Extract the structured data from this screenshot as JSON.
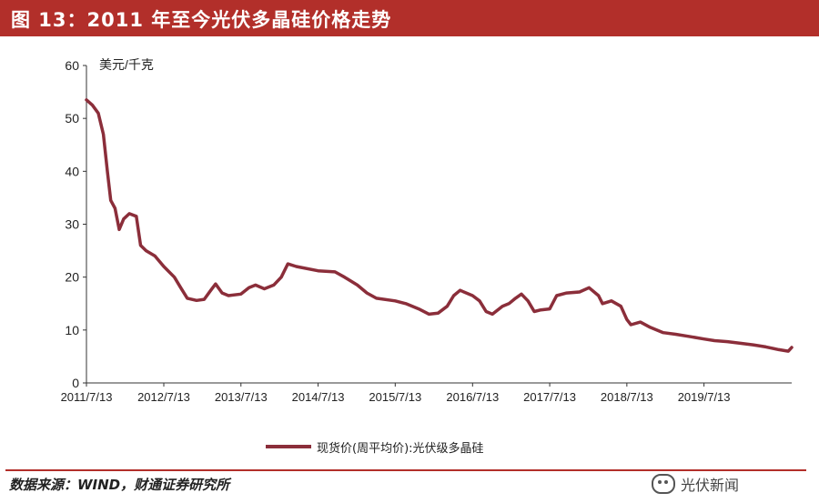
{
  "header": {
    "title": "图 13：2011 年至今光伏多晶硅价格走势"
  },
  "footer": {
    "source": "数据来源：WIND，财通证券研究所",
    "watermark": "光伏新闻"
  },
  "chart_data": {
    "type": "line",
    "title": "",
    "ylabel": "美元/千克",
    "xlabel": "",
    "ylim": [
      0,
      60
    ],
    "yticks": [
      0,
      10,
      20,
      30,
      40,
      50,
      60
    ],
    "xlim": [
      "2011-07-13",
      "2020-08-31"
    ],
    "xticks": [
      "2011/7/13",
      "2012/7/13",
      "2013/7/13",
      "2014/7/13",
      "2015/7/13",
      "2016/7/13",
      "2017/7/13",
      "2018/7/13",
      "2019/7/13"
    ],
    "grid": false,
    "legend_position": "bottom",
    "series": [
      {
        "name": "现货价(周平均价):光伏级多晶硅",
        "color": "#8b2e3a",
        "points": [
          [
            "2011-07-13",
            53.5
          ],
          [
            "2011-08-10",
            52.5
          ],
          [
            "2011-09-07",
            51.0
          ],
          [
            "2011-10-01",
            47.0
          ],
          [
            "2011-10-20",
            40.0
          ],
          [
            "2011-11-05",
            34.5
          ],
          [
            "2011-11-25",
            33.0
          ],
          [
            "2011-12-15",
            29.0
          ],
          [
            "2012-01-05",
            31.0
          ],
          [
            "2012-02-01",
            32.0
          ],
          [
            "2012-03-05",
            31.5
          ],
          [
            "2012-03-25",
            26.0
          ],
          [
            "2012-04-20",
            25.0
          ],
          [
            "2012-06-01",
            24.0
          ],
          [
            "2012-07-13",
            22.0
          ],
          [
            "2012-09-01",
            20.0
          ],
          [
            "2012-10-01",
            18.0
          ],
          [
            "2012-11-01",
            16.0
          ],
          [
            "2012-12-15",
            15.6
          ],
          [
            "2013-01-20",
            15.8
          ],
          [
            "2013-02-20",
            17.5
          ],
          [
            "2013-03-15",
            18.7
          ],
          [
            "2013-04-15",
            17.0
          ],
          [
            "2013-05-15",
            16.5
          ],
          [
            "2013-07-13",
            16.8
          ],
          [
            "2013-08-20",
            18.0
          ],
          [
            "2013-09-20",
            18.5
          ],
          [
            "2013-11-01",
            17.8
          ],
          [
            "2013-12-15",
            18.5
          ],
          [
            "2014-01-20",
            20.0
          ],
          [
            "2014-02-20",
            22.5
          ],
          [
            "2014-04-01",
            22.0
          ],
          [
            "2014-07-13",
            21.2
          ],
          [
            "2014-10-01",
            21.0
          ],
          [
            "2014-11-15",
            20.0
          ],
          [
            "2015-01-15",
            18.5
          ],
          [
            "2015-03-01",
            17.0
          ],
          [
            "2015-04-15",
            16.0
          ],
          [
            "2015-07-13",
            15.5
          ],
          [
            "2015-09-01",
            15.0
          ],
          [
            "2015-11-01",
            14.0
          ],
          [
            "2015-12-20",
            13.0
          ],
          [
            "2016-02-01",
            13.2
          ],
          [
            "2016-03-15",
            14.5
          ],
          [
            "2016-04-15",
            16.5
          ],
          [
            "2016-05-15",
            17.5
          ],
          [
            "2016-07-13",
            16.5
          ],
          [
            "2016-08-15",
            15.5
          ],
          [
            "2016-09-15",
            13.5
          ],
          [
            "2016-10-15",
            13.0
          ],
          [
            "2016-12-01",
            14.5
          ],
          [
            "2017-01-01",
            15.0
          ],
          [
            "2017-02-01",
            16.0
          ],
          [
            "2017-03-01",
            16.8
          ],
          [
            "2017-04-01",
            15.5
          ],
          [
            "2017-05-01",
            13.5
          ],
          [
            "2017-06-01",
            13.8
          ],
          [
            "2017-07-13",
            14.0
          ],
          [
            "2017-08-15",
            16.5
          ],
          [
            "2017-10-01",
            17.0
          ],
          [
            "2017-12-01",
            17.2
          ],
          [
            "2018-01-15",
            18.0
          ],
          [
            "2018-03-01",
            16.5
          ],
          [
            "2018-03-20",
            15.0
          ],
          [
            "2018-05-01",
            15.5
          ],
          [
            "2018-06-15",
            14.5
          ],
          [
            "2018-07-13",
            12.0
          ],
          [
            "2018-08-01",
            11.0
          ],
          [
            "2018-09-15",
            11.5
          ],
          [
            "2018-11-01",
            10.5
          ],
          [
            "2019-01-01",
            9.5
          ],
          [
            "2019-03-01",
            9.2
          ],
          [
            "2019-05-01",
            8.8
          ],
          [
            "2019-07-13",
            8.3
          ],
          [
            "2019-09-01",
            8.0
          ],
          [
            "2019-11-01",
            7.8
          ],
          [
            "2020-01-01",
            7.5
          ],
          [
            "2020-03-01",
            7.2
          ],
          [
            "2020-05-01",
            6.8
          ],
          [
            "2020-07-01",
            6.3
          ],
          [
            "2020-08-15",
            6.0
          ],
          [
            "2020-08-31",
            6.7
          ]
        ]
      }
    ]
  }
}
